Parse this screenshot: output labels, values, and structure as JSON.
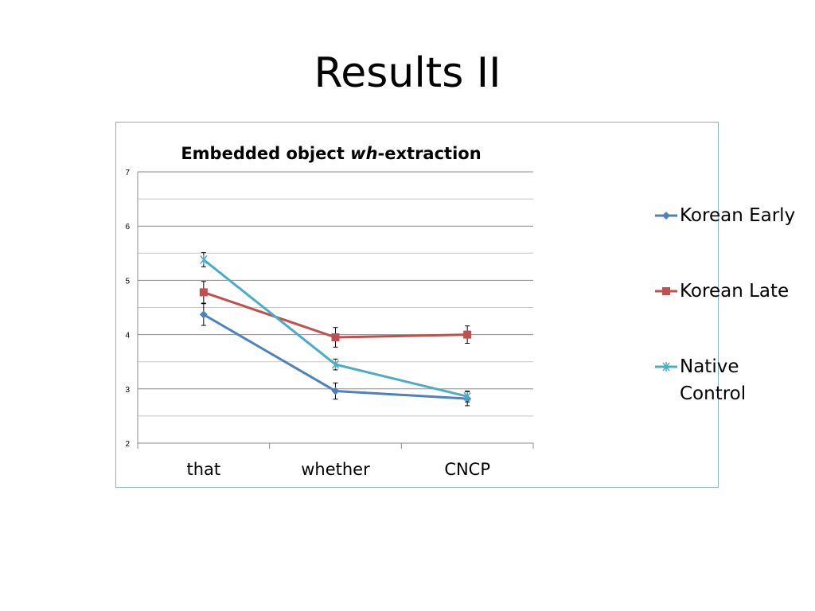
{
  "slide": {
    "title": "Results II"
  },
  "chart_data": {
    "type": "line",
    "title_parts": [
      "Embedded object ",
      "wh",
      "-extraction"
    ],
    "categories": [
      "that",
      "whether",
      "CNCP"
    ],
    "ylim": [
      2,
      7
    ],
    "yticks": [
      "2",
      "3",
      "4",
      "5",
      "6",
      "7"
    ],
    "grid": true,
    "legend_position": "right",
    "series": [
      {
        "name": "Korean Early",
        "color": "#4f81bd",
        "marker": "diamond",
        "values": [
          4.37,
          2.96,
          2.82
        ],
        "errors": [
          0.2,
          0.15,
          0.13
        ]
      },
      {
        "name": "Korean Late",
        "color": "#c0504d",
        "marker": "square",
        "values": [
          4.78,
          3.95,
          4.0
        ],
        "errors": [
          0.2,
          0.18,
          0.16
        ]
      },
      {
        "name": "Native Control",
        "color": "#4bacc6",
        "marker": "star",
        "values": [
          5.38,
          3.45,
          2.86
        ],
        "errors": [
          0.13,
          0.1,
          0.1
        ]
      }
    ]
  }
}
